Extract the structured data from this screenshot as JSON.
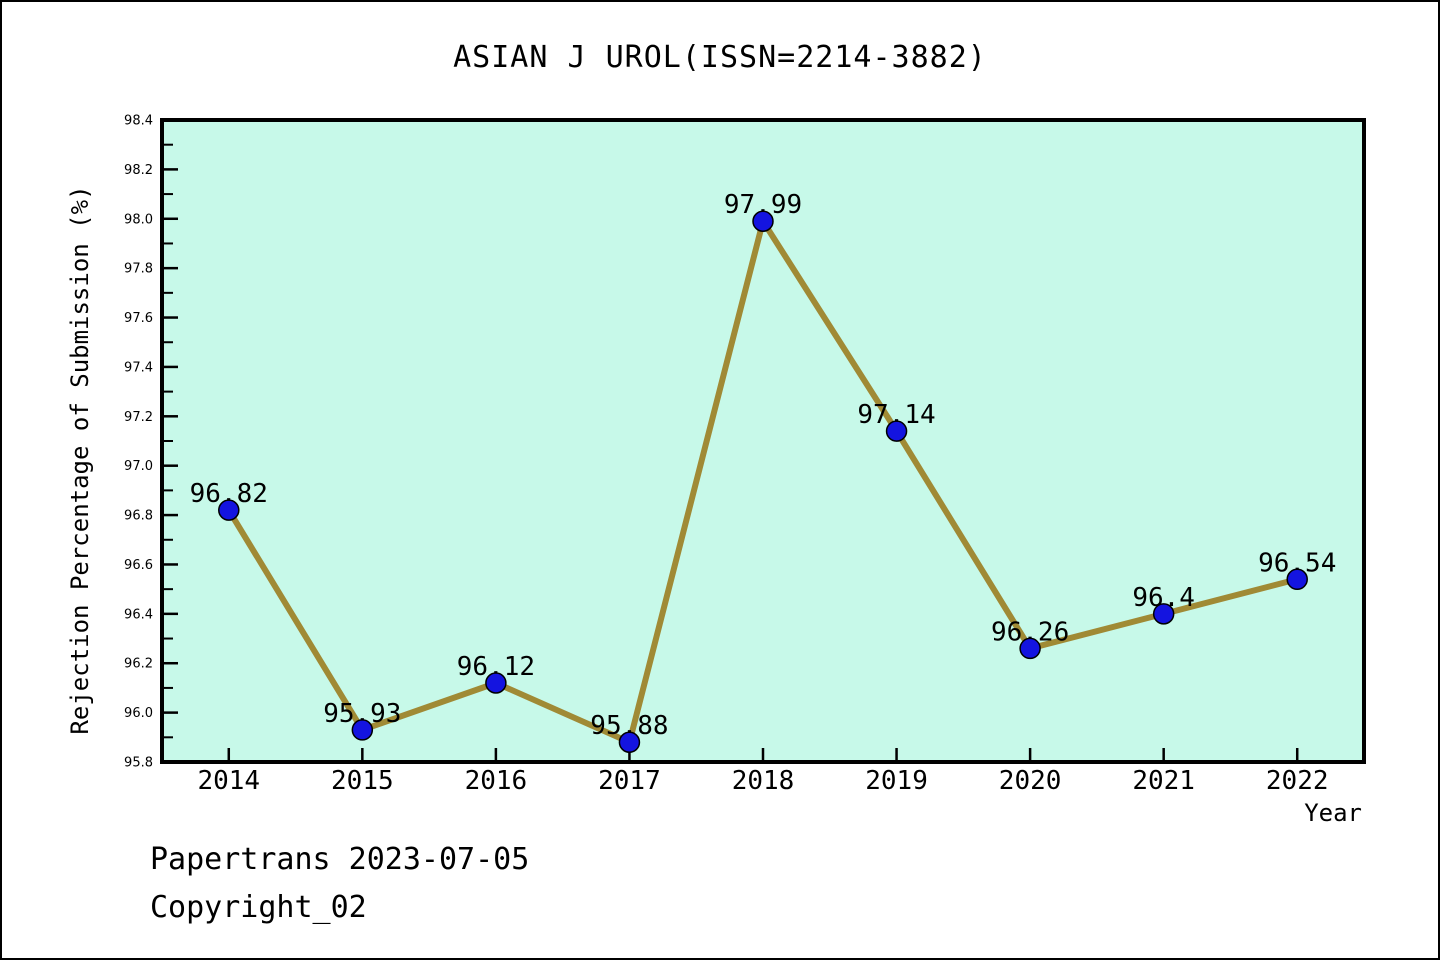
{
  "chart_data": {
    "type": "line",
    "title": "ASIAN J UROL(ISSN=2214-3882)",
    "xlabel": "Year",
    "ylabel": "Rejection Percentage of Submission (%)",
    "x": [
      2014,
      2015,
      2016,
      2017,
      2018,
      2019,
      2020,
      2021,
      2022
    ],
    "values": [
      96.82,
      95.93,
      96.12,
      95.88,
      97.99,
      97.14,
      96.26,
      96.4,
      96.54
    ],
    "point_labels": [
      "96.82",
      "95.93",
      "96.12",
      "95.88",
      "97.99",
      "97.14",
      "96.26",
      "96.4",
      "96.54"
    ],
    "ylim": [
      95.8,
      98.4
    ],
    "y_major_step": 0.2,
    "y_minor_step": 0.1,
    "x_padding": 0.5,
    "grid": "off",
    "legend": "none",
    "colors": {
      "figure_background": "#ffffff",
      "plot_background": "#c7f9e9",
      "line": "#a08a35",
      "marker_fill": "#1414e0",
      "marker_edge": "#000000",
      "axis": "#000000",
      "text": "#000000"
    }
  },
  "footer": {
    "line1": "Papertrans 2023-07-05",
    "line2": "Copyright_02"
  }
}
